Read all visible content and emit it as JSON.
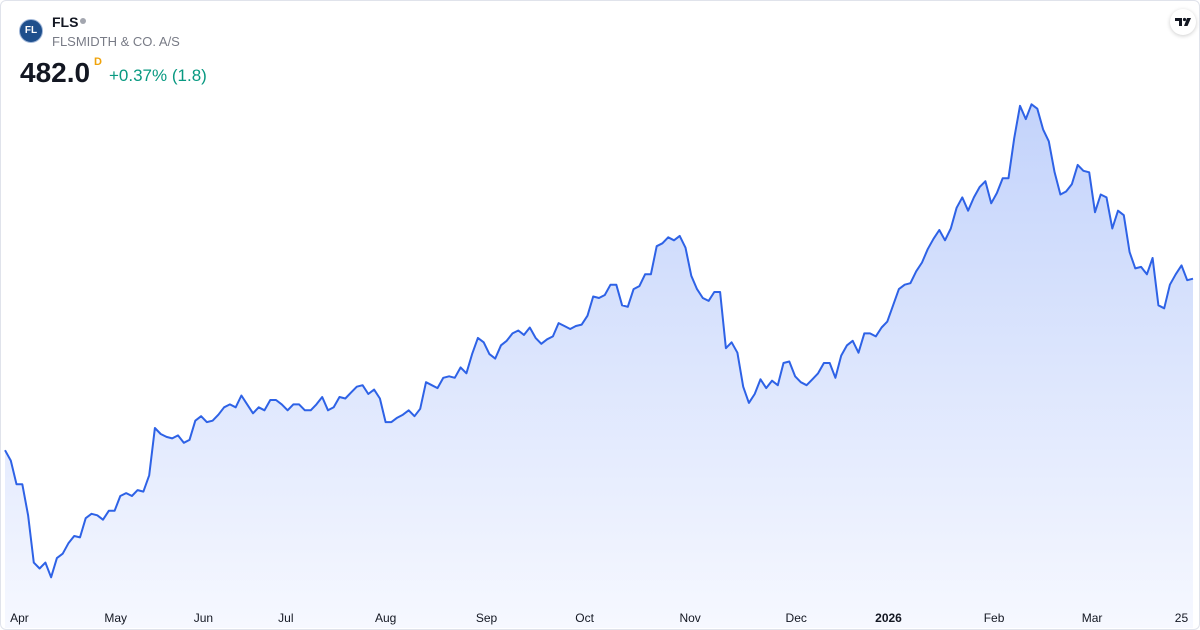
{
  "header": {
    "logo": "FL",
    "symbol": "FLS",
    "name": "FLSMIDTH & CO. A/S",
    "price": "482.0",
    "interval": "D",
    "change": "+0.37% (1.8)"
  },
  "chart_data": {
    "type": "area",
    "color": "#2e62e6",
    "values": [
      366,
      359,
      343,
      343,
      322,
      290,
      286,
      290,
      280,
      293,
      296,
      303,
      308,
      307,
      320,
      323,
      322,
      319,
      325,
      325,
      335,
      337,
      335,
      339,
      338,
      349,
      381,
      377,
      375,
      374,
      376,
      371,
      373,
      386,
      389,
      385,
      386,
      390,
      395,
      397,
      395,
      403,
      397,
      391,
      395,
      393,
      400,
      400,
      397,
      393,
      397,
      397,
      393,
      393,
      397,
      402,
      393,
      395,
      402,
      401,
      405,
      409,
      410,
      404,
      407,
      401,
      385,
      385,
      388,
      390,
      393,
      389,
      394,
      412,
      410,
      408,
      415,
      416,
      415,
      422,
      418,
      431,
      442,
      439,
      431,
      428,
      437,
      440,
      445,
      447,
      444,
      449,
      442,
      438,
      441,
      443,
      452,
      450,
      448,
      450,
      451,
      457,
      470,
      469,
      471,
      478,
      478,
      464,
      463,
      475,
      477,
      485,
      485,
      504,
      506,
      510,
      508,
      511,
      503,
      484,
      475,
      469,
      467,
      473,
      473,
      435,
      439,
      432,
      409,
      398,
      404,
      414,
      408,
      413,
      410,
      425,
      426,
      416,
      412,
      410,
      414,
      418,
      425,
      425,
      415,
      430,
      437,
      440,
      432,
      445,
      445,
      443,
      449,
      453,
      464,
      475,
      478,
      479,
      487,
      493,
      502,
      509,
      515,
      508,
      516,
      530,
      537,
      528,
      537,
      544,
      548,
      533,
      540,
      550,
      550,
      577,
      599,
      590,
      600,
      597,
      583,
      575,
      554,
      539,
      541,
      546,
      559,
      555,
      554,
      527,
      539,
      537,
      516,
      528,
      525,
      500,
      489,
      490,
      485,
      496,
      464,
      462,
      478,
      485,
      491,
      481,
      482.0
    ],
    "xlim": [
      0,
      206
    ],
    "ylim": [
      264,
      609
    ],
    "xticks": [
      {
        "value": 2.5,
        "label": "Apr"
      },
      {
        "value": 19.2,
        "label": "May"
      },
      {
        "value": 34.4,
        "label": "Jun"
      },
      {
        "value": 48.7,
        "label": "Jul"
      },
      {
        "value": 66,
        "label": "Aug"
      },
      {
        "value": 83.5,
        "label": "Sep"
      },
      {
        "value": 100.5,
        "label": "Oct"
      },
      {
        "value": 118.8,
        "label": "Nov"
      },
      {
        "value": 137.2,
        "label": "Dec"
      },
      {
        "value": 153.2,
        "label": "2026"
      },
      {
        "value": 171.5,
        "label": "Feb"
      },
      {
        "value": 188.5,
        "label": "Mar"
      },
      {
        "value": 204,
        "label": "25"
      }
    ]
  }
}
